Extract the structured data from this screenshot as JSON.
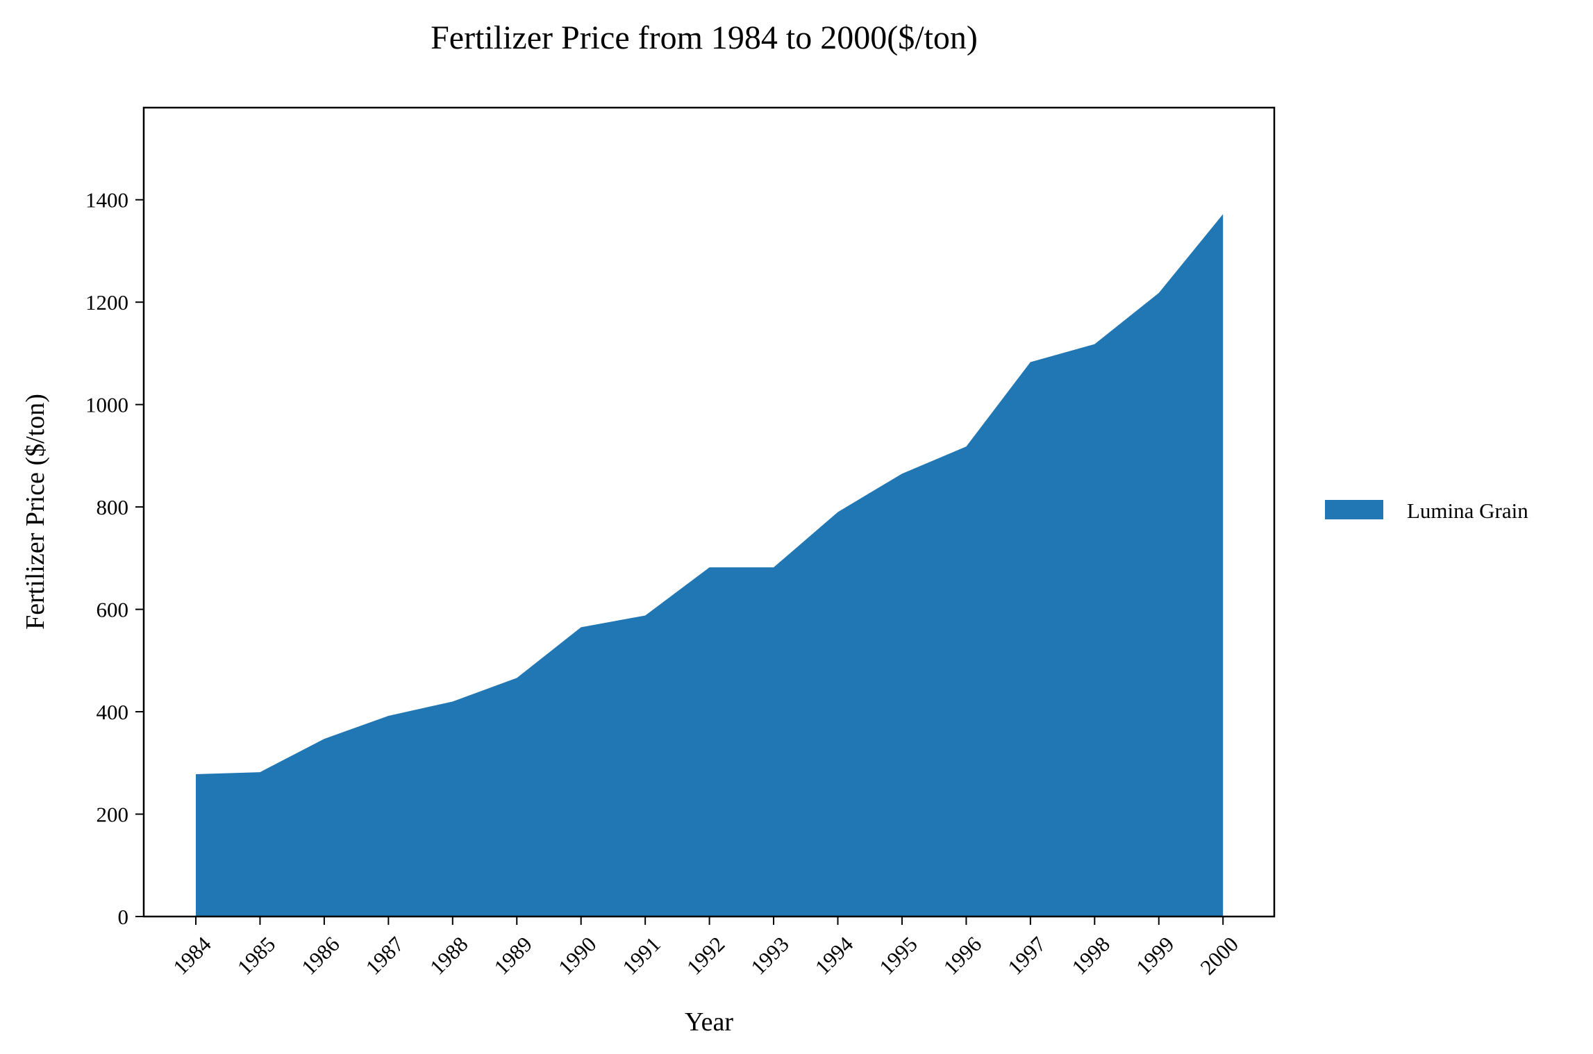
{
  "chart_data": {
    "type": "area",
    "title": "Fertilizer Price from 1984 to 2000($/ton)",
    "xlabel": "Year",
    "ylabel": "Fertilizer Price ($/ton)",
    "x": [
      "1984",
      "1985",
      "1986",
      "1987",
      "1988",
      "1989",
      "1990",
      "1991",
      "1992",
      "1993",
      "1994",
      "1995",
      "1996",
      "1997",
      "1998",
      "1999",
      "2000"
    ],
    "series": [
      {
        "name": "Lumina Grain",
        "color": "#2077b4",
        "values": [
          278,
          282,
          347,
          392,
          420,
          466,
          565,
          588,
          682,
          682,
          790,
          865,
          918,
          1083,
          1118,
          1218,
          1372
        ]
      }
    ],
    "yticks": [
      "0",
      "200",
      "400",
      "600",
      "800",
      "1000",
      "1200",
      "1400"
    ],
    "ylim": [
      0,
      1580
    ],
    "grid": false,
    "legend_position": "right"
  }
}
